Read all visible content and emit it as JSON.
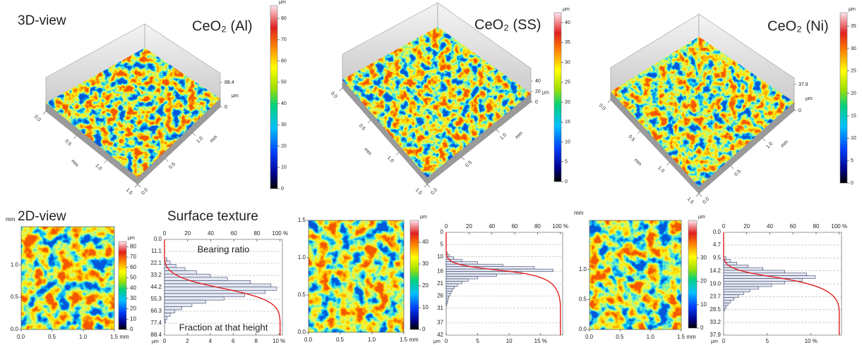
{
  "headings": {
    "view3d": "3D-view",
    "view2d": "2D-view",
    "texture": "Surface texture"
  },
  "panels": [
    {
      "title": "CeO₂ (Al)",
      "colorbar": {
        "unit": "μm",
        "lim": [
          0,
          86
        ],
        "ticks": [
          0,
          10,
          20,
          30,
          40,
          50,
          60,
          70,
          80
        ]
      },
      "surface": {
        "xlim": [
          0,
          1.5
        ],
        "unit": "mm",
        "edge1": [
          {
            "value": 0,
            "label": "0.0"
          },
          {
            "value": 0.5,
            "label": "0.5"
          },
          {
            "value": 1,
            "label": "1.0"
          },
          {
            "value": 1.5,
            "label": "1.5"
          }
        ],
        "edge2": [
          {
            "value": 0,
            "label": "0.0"
          },
          {
            "value": 0.5,
            "label": "0.5"
          },
          {
            "value": 1,
            "label": "1.0"
          }
        ],
        "zlim": [
          0,
          88.4
        ],
        "zticks": [
          0,
          88.4
        ],
        "zunit": "μm"
      },
      "map": {
        "xlim": [
          0,
          1.5
        ],
        "ylim": [
          0,
          1.59
        ],
        "xticks": [
          {
            "value": 0,
            "label": "0.0"
          },
          {
            "value": 0.5,
            "label": "0.5"
          },
          {
            "value": 1,
            "label": "1.0"
          },
          {
            "value": 1.5,
            "label": "1.5 mm"
          }
        ],
        "yticks": [
          {
            "value": 0,
            "label": "0.0"
          },
          {
            "value": 0.5,
            "label": "0.5"
          },
          {
            "value": 1,
            "label": "1.0"
          }
        ],
        "yunit": "mm",
        "colorbar": {
          "unit": "μm",
          "lim": [
            0,
            85
          ],
          "ticks": [
            0,
            10,
            20,
            30,
            40,
            50,
            60,
            70,
            80
          ]
        }
      },
      "histogram": {
        "annotations": [
          "Bearing ratio",
          "Fraction at that height"
        ],
        "ylim": [
          0,
          88.4
        ],
        "yticks": [
          {
            "value": 0,
            "label": "0.0"
          },
          11.1,
          22.1,
          33.2,
          44.2,
          55.3,
          66.3,
          77.4,
          88.4
        ],
        "yunit": "μm",
        "xlim": [
          0,
          10.3
        ],
        "xticks": [
          0,
          2,
          4,
          6,
          8,
          {
            "value": 10,
            "label": "10 %"
          }
        ],
        "x2lim": [
          0,
          102
        ],
        "x2ticks": [
          0,
          20,
          40,
          60,
          80,
          {
            "value": 100,
            "label": "100 %"
          }
        ],
        "bins": [
          17,
          20,
          23,
          26,
          29,
          32,
          35,
          38,
          41,
          44,
          47,
          50,
          53,
          56,
          59,
          62,
          65,
          68,
          71,
          74,
          77
        ],
        "values": [
          0.2,
          0.5,
          1,
          1.8,
          2.8,
          4,
          5.5,
          7.5,
          9.3,
          9.8,
          8.8,
          7,
          5.2,
          3.6,
          2.4,
          1.5,
          0.9,
          0.5,
          0.2,
          0.1
        ]
      }
    },
    {
      "title": "CeO₂ (SS)",
      "colorbar": {
        "unit": "μm",
        "lim": [
          0,
          42.5
        ],
        "ticks": [
          0,
          5,
          10,
          15,
          20,
          25,
          30,
          35,
          40
        ]
      },
      "surface": {
        "xlim": [
          0,
          1.5
        ],
        "unit": "mm",
        "edge1": [
          {
            "value": 0,
            "label": "0.0"
          },
          {
            "value": 0.5,
            "label": "0.5"
          },
          {
            "value": 1,
            "label": "1.0"
          },
          {
            "value": 1.5,
            "label": "1.5"
          }
        ],
        "edge2": [
          {
            "value": 0,
            "label": "0.0"
          },
          {
            "value": 0.5,
            "label": "0.5"
          },
          {
            "value": 1,
            "label": "1.0"
          }
        ],
        "zlim": [
          0,
          40
        ],
        "zticks": [
          0,
          20,
          40
        ],
        "zunit": "μm"
      },
      "map": {
        "xlim": [
          0,
          1.5
        ],
        "ylim": [
          0,
          1.5
        ],
        "xticks": [
          {
            "value": 0,
            "label": "0.0"
          },
          {
            "value": 0.5,
            "label": "0.5"
          },
          {
            "value": 1,
            "label": "1.0"
          },
          {
            "value": 1.5,
            "label": "1.5 mm"
          }
        ],
        "yticks": [
          {
            "value": 0,
            "label": "0.0"
          },
          {
            "value": 0.5,
            "label": "0.5"
          },
          {
            "value": 1,
            "label": "1.0"
          },
          {
            "value": 1.5,
            "label": "1.5"
          }
        ],
        "colorbar": {
          "unit": "μm",
          "lim": [
            0,
            50
          ],
          "ticks": [
            0,
            10,
            20,
            30,
            40
          ]
        }
      },
      "histogram": {
        "ylim": [
          0,
          42
        ],
        "yticks": [
          0,
          5,
          10,
          16,
          21,
          26,
          31,
          37,
          42
        ],
        "yunit": "μm",
        "xlim": [
          0,
          18.5
        ],
        "xticks": [
          0,
          5,
          10,
          {
            "value": 15,
            "label": "15 %"
          }
        ],
        "x2lim": [
          0,
          102
        ],
        "x2ticks": [
          0,
          20,
          40,
          60,
          80,
          {
            "value": 100,
            "label": "100 %"
          }
        ],
        "bins": [
          8,
          9,
          10,
          11,
          12,
          13,
          14,
          15,
          16,
          17,
          18,
          19,
          20,
          21,
          22,
          23,
          24,
          25,
          26,
          27,
          28,
          29,
          30
        ],
        "values": [
          0.2,
          0.5,
          1.2,
          2.5,
          5,
          9,
          14,
          17,
          12,
          8,
          5,
          3.5,
          2.5,
          1.8,
          1.3,
          1,
          0.8,
          0.6,
          0.4,
          0.3,
          0.2,
          0.1
        ]
      }
    },
    {
      "title": "CeO₂ (Ni)",
      "colorbar": {
        "unit": "μm",
        "lim": [
          0,
          38
        ],
        "ticks": [
          0,
          5,
          10,
          15,
          20,
          25,
          30,
          35
        ]
      },
      "surface": {
        "xlim": [
          0,
          1.5
        ],
        "unit": "mm",
        "edge1": [
          {
            "value": 0,
            "label": "0.0"
          },
          {
            "value": 0.5,
            "label": "0.5"
          },
          {
            "value": 1,
            "label": "1.0"
          },
          {
            "value": 1.5,
            "label": "1.5"
          }
        ],
        "edge2": [
          {
            "value": 0,
            "label": "0.0"
          },
          {
            "value": 0.5,
            "label": "0.5"
          },
          {
            "value": 1,
            "label": "1.0"
          }
        ],
        "zlim": [
          0,
          37.9
        ],
        "zticks": [
          0,
          37.9
        ],
        "zunit": "μm"
      },
      "map": {
        "xlim": [
          0,
          1.5
        ],
        "ylim": [
          0,
          1.82
        ],
        "xticks": [
          {
            "value": 0,
            "label": "0.0"
          },
          {
            "value": 0.5,
            "label": "0.5"
          },
          {
            "value": 1,
            "label": "1.0"
          },
          {
            "value": 1.5,
            "label": "1.5 mm"
          }
        ],
        "yticks": [
          {
            "value": 0,
            "label": "0.0"
          },
          {
            "value": 0.5,
            "label": "0.5"
          },
          {
            "value": 1,
            "label": "1.0"
          }
        ],
        "yunit": "mm",
        "colorbar": {
          "unit": "μm",
          "lim": [
            0,
            46
          ],
          "ticks": [
            0,
            10,
            20,
            30
          ]
        }
      },
      "histogram": {
        "ylim": [
          0,
          37.9
        ],
        "yticks": [
          {
            "value": 0,
            "label": "0.0"
          },
          4.7,
          9.5,
          14.2,
          {
            "value": 19,
            "label": "19.0"
          },
          23.7,
          28.5,
          33.2,
          37.9
        ],
        "yunit": "μm",
        "xlim": [
          0,
          13.5
        ],
        "xticks": [
          0,
          5,
          {
            "value": 10,
            "label": "10 %"
          }
        ],
        "x2lim": [
          0,
          102
        ],
        "x2ticks": [
          0,
          20,
          40,
          60,
          80,
          {
            "value": 100,
            "label": "100 %"
          }
        ],
        "bins": [
          9,
          10,
          11,
          12,
          13,
          14,
          15,
          16,
          17,
          18,
          19,
          20,
          21,
          22,
          23,
          24,
          25,
          26,
          27,
          28,
          29
        ],
        "values": [
          0.3,
          0.8,
          1.5,
          2.8,
          4.5,
          7,
          9.5,
          10.5,
          9,
          7,
          5.5,
          4,
          3,
          2.3,
          1.7,
          1.2,
          0.8,
          0.5,
          0.3,
          0.1
        ]
      }
    }
  ]
}
